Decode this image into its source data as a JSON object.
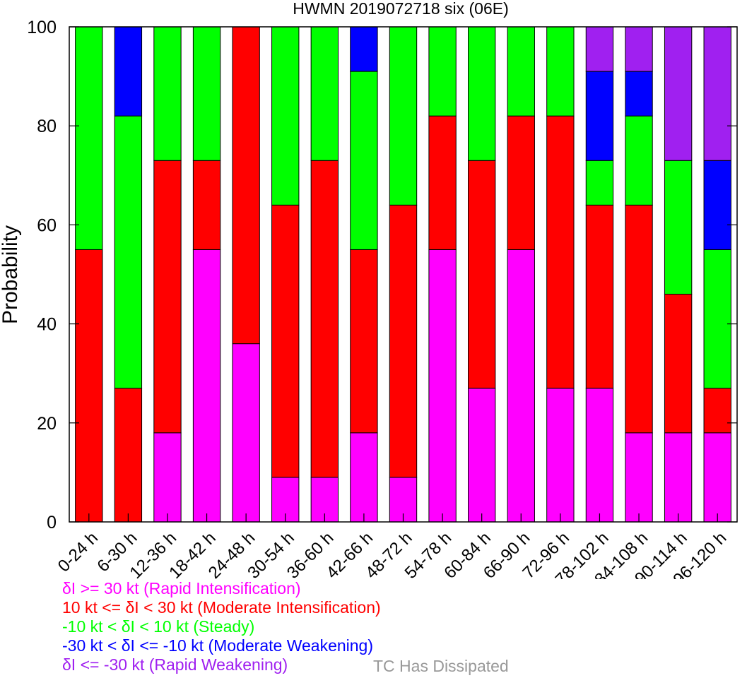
{
  "chart_data": {
    "type": "bar",
    "stacked": true,
    "title": "HWMN 2019072718 six (06E)",
    "ylabel": "Probability",
    "xlabel": "",
    "ylim": [
      0,
      100
    ],
    "yticks": [
      0,
      20,
      40,
      60,
      80,
      100
    ],
    "grid": false,
    "categories": [
      "0-24 h",
      "6-30 h",
      "12-36 h",
      "18-42 h",
      "24-48 h",
      "30-54 h",
      "36-60 h",
      "42-66 h",
      "48-72 h",
      "54-78 h",
      "60-84 h",
      "66-90 h",
      "72-96 h",
      "78-102 h",
      "84-108 h",
      "90-114 h",
      "96-120 h"
    ],
    "series": [
      {
        "name": "δI >= 30 kt (Rapid Intensification)",
        "color": "#ff00ff",
        "values": [
          0,
          0,
          18,
          55,
          36,
          9,
          9,
          18,
          9,
          55,
          27,
          55,
          27,
          27,
          18,
          18,
          18
        ]
      },
      {
        "name": "10 kt <= δI < 30 kt (Moderate Intensification)",
        "color": "#ff0000",
        "values": [
          55,
          27,
          55,
          18,
          64,
          55,
          64,
          37,
          55,
          27,
          46,
          27,
          55,
          37,
          46,
          28,
          9
        ]
      },
      {
        "name": "-10 kt < δI < 10 kt (Steady)",
        "color": "#00ff00",
        "values": [
          45,
          55,
          27,
          27,
          0,
          36,
          27,
          36,
          36,
          18,
          27,
          18,
          18,
          9,
          18,
          27,
          28
        ]
      },
      {
        "name": "-30 kt < δI <= -10 kt (Moderate Weakening)",
        "color": "#0000ff",
        "values": [
          0,
          18,
          0,
          0,
          0,
          0,
          0,
          9,
          0,
          0,
          0,
          0,
          0,
          18,
          9,
          0,
          18
        ]
      },
      {
        "name": "δI <= -30 kt (Rapid Weakening)",
        "color": "#a020f0",
        "values": [
          0,
          0,
          0,
          0,
          0,
          0,
          0,
          0,
          0,
          0,
          0,
          0,
          0,
          9,
          9,
          27,
          27
        ]
      }
    ],
    "legend_placement": "bottom-left"
  },
  "legend": {
    "ri": "δI >= 30 kt (Rapid Intensification)",
    "mi": "10 kt <= δI < 30 kt (Moderate Intensification)",
    "steady": "-10 kt < δI < 10 kt (Steady)",
    "mw": "-30 kt < δI <= -10 kt (Moderate Weakening)",
    "rw": "δI <= -30 kt (Rapid Weakening)",
    "dissipated": "TC Has Dissipated",
    "colors": {
      "ri": "#ff00ff",
      "mi": "#ff0000",
      "steady": "#00ff00",
      "mw": "#0000ff",
      "rw": "#a020f0",
      "dissipated": "#999999"
    }
  }
}
